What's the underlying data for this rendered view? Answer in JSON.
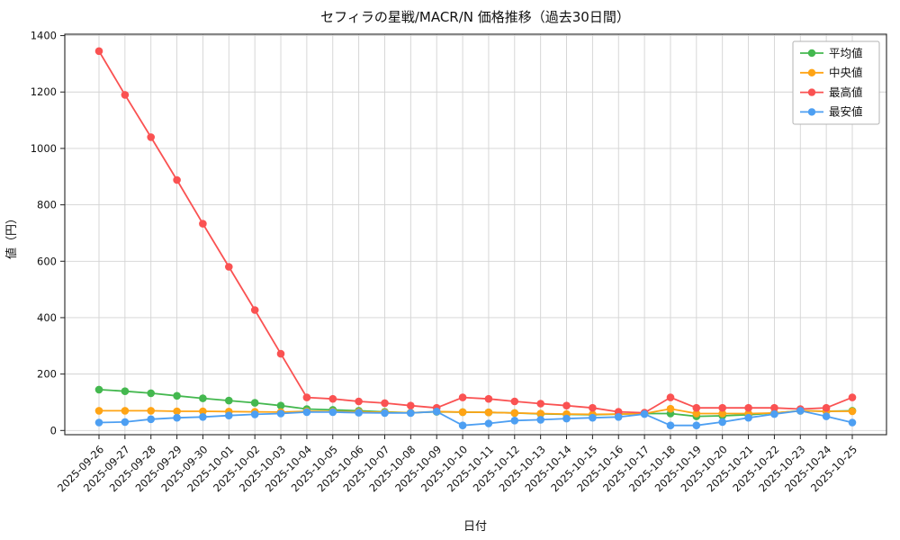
{
  "chart_data": {
    "type": "line",
    "title": "セフィラの星戦/MACR/N 価格推移（過去30日間）",
    "xlabel": "日付",
    "ylabel": "値（円）",
    "ylim": [
      0,
      1400
    ],
    "yticks": [
      0,
      200,
      400,
      600,
      800,
      1000,
      1200,
      1400
    ],
    "grid": true,
    "legend_position": "upper right",
    "x": [
      "2025-09-26",
      "2025-09-27",
      "2025-09-28",
      "2025-09-29",
      "2025-09-30",
      "2025-10-01",
      "2025-10-02",
      "2025-10-03",
      "2025-10-04",
      "2025-10-05",
      "2025-10-06",
      "2025-10-07",
      "2025-10-08",
      "2025-10-09",
      "2025-10-10",
      "2025-10-11",
      "2025-10-12",
      "2025-10-13",
      "2025-10-14",
      "2025-10-15",
      "2025-10-16",
      "2025-10-17",
      "2025-10-18",
      "2025-10-19",
      "2025-10-20",
      "2025-10-21",
      "2025-10-22",
      "2025-10-23",
      "2025-10-24",
      "2025-10-25"
    ],
    "series": [
      {
        "key": "average",
        "name": "平均値",
        "color": "#44b84f",
        "values": [
          145,
          139,
          132,
          123,
          114,
          106,
          98,
          88,
          76,
          73,
          70,
          66,
          63,
          66,
          65,
          64,
          62,
          59,
          57,
          56,
          58,
          60,
          60,
          50,
          52,
          56,
          62,
          70,
          68,
          70
        ]
      },
      {
        "key": "median",
        "name": "中央値",
        "color": "#ffa415",
        "values": [
          70,
          70,
          70,
          68,
          68,
          67,
          66,
          65,
          68,
          67,
          66,
          64,
          63,
          67,
          65,
          64,
          62,
          60,
          58,
          57,
          58,
          60,
          77,
          60,
          60,
          60,
          62,
          70,
          68,
          68
        ]
      },
      {
        "key": "max",
        "name": "最高値",
        "color": "#fa5252",
        "values": [
          1345,
          1190,
          1040,
          888,
          733,
          580,
          427,
          272,
          117,
          112,
          103,
          97,
          88,
          80,
          117,
          112,
          103,
          95,
          88,
          80,
          66,
          63,
          117,
          80,
          80,
          80,
          80,
          76,
          80,
          117
        ]
      },
      {
        "key": "min",
        "name": "最安値",
        "color": "#4d9ff2",
        "values": [
          28,
          30,
          40,
          45,
          48,
          53,
          57,
          60,
          65,
          65,
          63,
          62,
          62,
          67,
          18,
          25,
          35,
          38,
          42,
          45,
          48,
          58,
          18,
          18,
          30,
          45,
          58,
          70,
          50,
          28
        ]
      }
    ]
  }
}
